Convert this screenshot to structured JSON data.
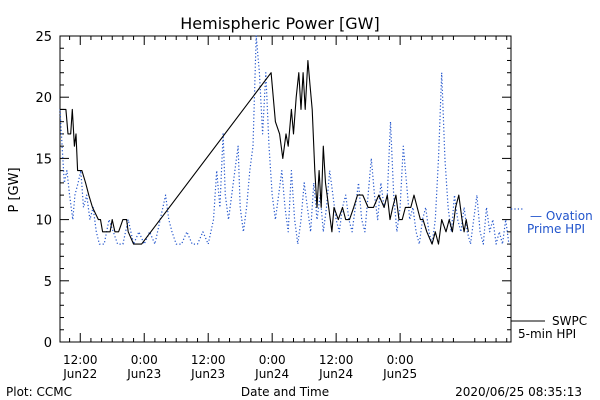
{
  "chart_data": {
    "type": "line",
    "title": "Hemispheric Power [GW]",
    "ylabel": "P [GW]",
    "xlabel": "Date and Time",
    "ylim": [
      0,
      25
    ],
    "yticks": [
      0,
      5,
      10,
      15,
      20,
      25
    ],
    "x_unit": "hours since 2020-06-22 00:00 UT",
    "xlim": [
      8.2,
      92.8
    ],
    "xticks": [
      {
        "x": 12,
        "line1": "12:00",
        "line2": "Jun22"
      },
      {
        "x": 24,
        "line1": "0:00",
        "line2": "Jun23"
      },
      {
        "x": 36,
        "line1": "12:00",
        "line2": "Jun23"
      },
      {
        "x": 48,
        "line1": "0:00",
        "line2": "Jun24"
      },
      {
        "x": 60,
        "line1": "12:00",
        "line2": "Jun24"
      },
      {
        "x": 72,
        "line1": "0:00",
        "line2": "Jun25"
      }
    ],
    "grid": false,
    "series": [
      {
        "name": "SWPC 5-min HPI",
        "style": "solid",
        "color": "#000000",
        "points": [
          [
            8.2,
            19
          ],
          [
            9.3,
            19
          ],
          [
            9.7,
            17
          ],
          [
            10.2,
            17
          ],
          [
            10.5,
            19
          ],
          [
            10.9,
            16
          ],
          [
            11.2,
            17
          ],
          [
            11.5,
            14
          ],
          [
            12.3,
            14
          ],
          [
            13.0,
            13
          ],
          [
            13.6,
            12
          ],
          [
            14.3,
            11
          ],
          [
            15.4,
            10
          ],
          [
            15.8,
            10
          ],
          [
            16.2,
            9
          ],
          [
            17.6,
            9
          ],
          [
            18.0,
            10
          ],
          [
            18.5,
            9
          ],
          [
            19.2,
            9
          ],
          [
            20.0,
            10
          ],
          [
            20.7,
            10
          ],
          [
            21.0,
            9
          ],
          [
            22.0,
            8
          ],
          [
            23.5,
            8
          ],
          [
            47.8,
            22
          ],
          [
            48.6,
            18
          ],
          [
            49.4,
            17
          ],
          [
            50.0,
            15
          ],
          [
            50.6,
            17
          ],
          [
            51.0,
            16
          ],
          [
            51.6,
            19
          ],
          [
            52.0,
            17
          ],
          [
            52.5,
            20
          ],
          [
            53.0,
            22
          ],
          [
            53.4,
            19
          ],
          [
            53.8,
            22
          ],
          [
            54.2,
            19
          ],
          [
            54.7,
            23
          ],
          [
            55.1,
            21
          ],
          [
            55.5,
            19
          ],
          [
            56.0,
            14
          ],
          [
            56.4,
            11
          ],
          [
            56.8,
            14
          ],
          [
            57.2,
            11
          ],
          [
            57.6,
            16
          ],
          [
            58.0,
            13
          ],
          [
            58.6,
            11
          ],
          [
            59.2,
            9
          ],
          [
            59.6,
            11
          ],
          [
            60.4,
            10
          ],
          [
            61.2,
            11
          ],
          [
            61.8,
            10
          ],
          [
            62.5,
            10
          ],
          [
            63.3,
            11
          ],
          [
            64.0,
            12
          ],
          [
            65.0,
            12
          ],
          [
            66.0,
            11
          ],
          [
            67.0,
            11
          ],
          [
            68.0,
            12
          ],
          [
            69.0,
            11
          ],
          [
            69.6,
            12
          ],
          [
            70.1,
            10
          ],
          [
            70.6,
            11
          ],
          [
            71.2,
            12
          ],
          [
            71.8,
            10
          ],
          [
            72.4,
            10
          ],
          [
            73.0,
            11
          ],
          [
            74.0,
            11
          ],
          [
            74.6,
            12
          ],
          [
            75.2,
            11
          ],
          [
            75.8,
            10
          ],
          [
            76.3,
            10
          ],
          [
            77.0,
            9
          ],
          [
            78.0,
            8
          ],
          [
            78.6,
            9
          ],
          [
            79.2,
            8
          ],
          [
            79.8,
            10
          ],
          [
            80.6,
            9
          ],
          [
            81.2,
            10
          ],
          [
            81.8,
            9
          ],
          [
            82.4,
            11
          ],
          [
            83.0,
            12
          ],
          [
            83.6,
            10
          ],
          [
            84.0,
            9
          ],
          [
            84.4,
            10
          ],
          [
            84.8,
            9
          ]
        ]
      },
      {
        "name": "Ovation Prime HPI",
        "style": "dotted",
        "color": "#2255cc",
        "points": [
          [
            8.2,
            19
          ],
          [
            8.6,
            16
          ],
          [
            9.0,
            13
          ],
          [
            9.5,
            14
          ],
          [
            10.0,
            12
          ],
          [
            10.6,
            10
          ],
          [
            11.0,
            12
          ],
          [
            11.6,
            13
          ],
          [
            12.1,
            14
          ],
          [
            12.6,
            11
          ],
          [
            13.2,
            12
          ],
          [
            13.8,
            10
          ],
          [
            14.4,
            11
          ],
          [
            15.0,
            9
          ],
          [
            15.6,
            8
          ],
          [
            16.5,
            8
          ],
          [
            17.4,
            10
          ],
          [
            18.2,
            9
          ],
          [
            19.0,
            8
          ],
          [
            20.0,
            8
          ],
          [
            21.0,
            10
          ],
          [
            22.0,
            8
          ],
          [
            23.0,
            9
          ],
          [
            24.0,
            8
          ],
          [
            25.0,
            9
          ],
          [
            26.0,
            8
          ],
          [
            27.0,
            10
          ],
          [
            28.0,
            12
          ],
          [
            28.6,
            10
          ],
          [
            29.2,
            9
          ],
          [
            30.0,
            8
          ],
          [
            31.0,
            8
          ],
          [
            32.0,
            9
          ],
          [
            33.0,
            8
          ],
          [
            34.0,
            8
          ],
          [
            35.0,
            9
          ],
          [
            36.0,
            8
          ],
          [
            37.0,
            10
          ],
          [
            37.6,
            14
          ],
          [
            38.2,
            11
          ],
          [
            38.8,
            17
          ],
          [
            39.2,
            12
          ],
          [
            39.8,
            10
          ],
          [
            40.4,
            12
          ],
          [
            41.0,
            14
          ],
          [
            41.6,
            16
          ],
          [
            42.0,
            11
          ],
          [
            42.6,
            9
          ],
          [
            43.2,
            11
          ],
          [
            43.8,
            14
          ],
          [
            44.4,
            16
          ],
          [
            45.0,
            25
          ],
          [
            45.6,
            22
          ],
          [
            46.2,
            17
          ],
          [
            46.8,
            22
          ],
          [
            47.4,
            16
          ],
          [
            48.0,
            12
          ],
          [
            48.6,
            10
          ],
          [
            49.2,
            12
          ],
          [
            49.8,
            14
          ],
          [
            50.4,
            11
          ],
          [
            51.0,
            9
          ],
          [
            51.6,
            14
          ],
          [
            52.2,
            10
          ],
          [
            52.8,
            8
          ],
          [
            53.4,
            10
          ],
          [
            54.0,
            13
          ],
          [
            54.6,
            11
          ],
          [
            55.2,
            9
          ],
          [
            55.8,
            13
          ],
          [
            56.4,
            10
          ],
          [
            57.0,
            12
          ],
          [
            57.6,
            9
          ],
          [
            58.2,
            11
          ],
          [
            58.8,
            14
          ],
          [
            59.4,
            12
          ],
          [
            60.0,
            10
          ],
          [
            60.6,
            9
          ],
          [
            61.2,
            11
          ],
          [
            61.8,
            12
          ],
          [
            62.4,
            10
          ],
          [
            63.0,
            9
          ],
          [
            63.6,
            11
          ],
          [
            64.2,
            13
          ],
          [
            64.8,
            10
          ],
          [
            65.4,
            9
          ],
          [
            66.0,
            12
          ],
          [
            66.6,
            15
          ],
          [
            67.2,
            12
          ],
          [
            67.8,
            10
          ],
          [
            68.4,
            13
          ],
          [
            69.0,
            11
          ],
          [
            69.6,
            12
          ],
          [
            70.2,
            18
          ],
          [
            70.8,
            12
          ],
          [
            71.4,
            9
          ],
          [
            72.0,
            11
          ],
          [
            72.6,
            16
          ],
          [
            73.2,
            13
          ],
          [
            73.8,
            10
          ],
          [
            74.4,
            11
          ],
          [
            75.0,
            9
          ],
          [
            75.6,
            8
          ],
          [
            76.2,
            10
          ],
          [
            76.8,
            11
          ],
          [
            77.4,
            9
          ],
          [
            78.0,
            8
          ],
          [
            78.6,
            10
          ],
          [
            79.2,
            15
          ],
          [
            79.8,
            22
          ],
          [
            80.4,
            15
          ],
          [
            81.0,
            11
          ],
          [
            81.6,
            9
          ],
          [
            82.2,
            12
          ],
          [
            82.8,
            10
          ],
          [
            83.4,
            9
          ],
          [
            84.0,
            11
          ],
          [
            84.6,
            9
          ],
          [
            85.2,
            8
          ],
          [
            85.8,
            10
          ],
          [
            86.4,
            12
          ],
          [
            87.0,
            9
          ],
          [
            87.6,
            8
          ],
          [
            88.2,
            11
          ],
          [
            88.8,
            9
          ],
          [
            89.4,
            10
          ],
          [
            90.0,
            8
          ],
          [
            90.6,
            9
          ],
          [
            91.2,
            8
          ],
          [
            91.8,
            10
          ],
          [
            92.4,
            8
          ]
        ]
      }
    ],
    "legend": [
      {
        "text": "— Ovation",
        "color": "#2255cc"
      },
      {
        "text": "Prime HPI",
        "color": "#2255cc"
      },
      {
        "text": "SWPC",
        "color": "#000000"
      },
      {
        "text": "5-min HPI",
        "color": "#000000"
      }
    ]
  },
  "footer": {
    "left": "Plot: CCMC",
    "center": "Date and Time",
    "right": "2020/06/25 08:35:13"
  }
}
